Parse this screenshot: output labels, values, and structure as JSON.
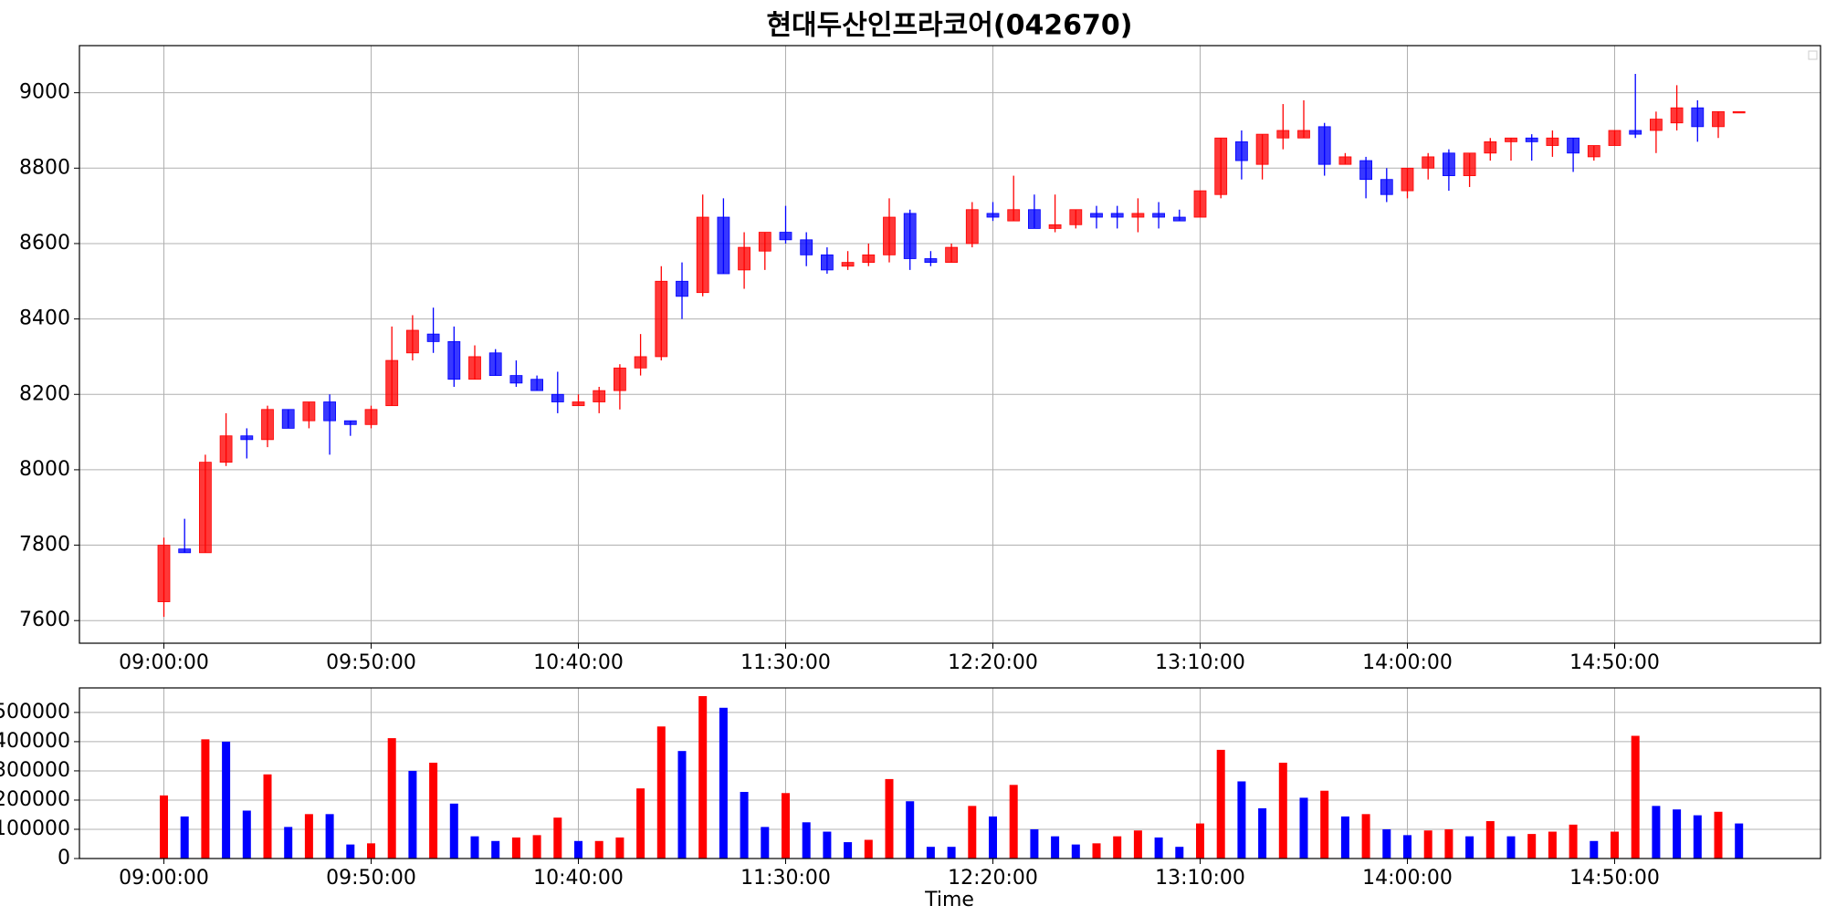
{
  "chart_data": [
    {
      "type": "candlestick",
      "title": "현대두산인프라코어(042670)",
      "categories": [
        "09:00:00",
        "09:05:00",
        "09:10:00",
        "09:15:00",
        "09:20:00",
        "09:25:00",
        "09:30:00",
        "09:35:00",
        "09:40:00",
        "09:45:00",
        "09:50:00",
        "09:55:00",
        "10:00:00",
        "10:05:00",
        "10:10:00",
        "10:15:00",
        "10:20:00",
        "10:25:00",
        "10:30:00",
        "10:35:00",
        "10:40:00",
        "10:45:00",
        "10:50:00",
        "10:55:00",
        "11:00:00",
        "11:05:00",
        "11:10:00",
        "11:15:00",
        "11:20:00",
        "11:25:00",
        "11:30:00",
        "11:35:00",
        "11:40:00",
        "11:45:00",
        "11:50:00",
        "11:55:00",
        "12:00:00",
        "12:05:00",
        "12:10:00",
        "12:15:00",
        "12:20:00",
        "12:25:00",
        "12:30:00",
        "12:35:00",
        "12:40:00",
        "12:45:00",
        "12:50:00",
        "12:55:00",
        "13:00:00",
        "13:05:00",
        "13:10:00",
        "13:15:00",
        "13:20:00",
        "13:25:00",
        "13:30:00",
        "13:35:00",
        "13:40:00",
        "13:45:00",
        "13:50:00",
        "13:55:00",
        "14:00:00",
        "14:05:00",
        "14:10:00",
        "14:15:00",
        "14:20:00",
        "14:25:00",
        "14:30:00",
        "14:35:00",
        "14:40:00",
        "14:45:00",
        "14:50:00",
        "14:55:00",
        "15:00:00",
        "15:05:00",
        "15:10:00",
        "15:15:00",
        "15:20:00"
      ],
      "open": [
        7650,
        7790,
        7780,
        8020,
        8090,
        8080,
        8160,
        8130,
        8180,
        8130,
        8120,
        8170,
        8310,
        8360,
        8340,
        8240,
        8310,
        8250,
        8240,
        8200,
        8170,
        8180,
        8210,
        8270,
        8300,
        8500,
        8470,
        8670,
        8530,
        8580,
        8630,
        8610,
        8570,
        8540,
        8550,
        8570,
        8680,
        8560,
        8550,
        8600,
        8680,
        8660,
        8690,
        8640,
        8650,
        8680,
        8680,
        8670,
        8680,
        8670,
        8670,
        8730,
        8870,
        8810,
        8880,
        8880,
        8910,
        8810,
        8820,
        8770,
        8740,
        8800,
        8840,
        8780,
        8840,
        8870,
        8880,
        8860,
        8880,
        8830,
        8860,
        8900,
        8900,
        8920,
        8960,
        8910,
        8950
      ],
      "high": [
        7820,
        7870,
        8040,
        8150,
        8110,
        8170,
        8160,
        8180,
        8200,
        8130,
        8170,
        8380,
        8410,
        8430,
        8380,
        8330,
        8320,
        8290,
        8250,
        8260,
        8200,
        8220,
        8280,
        8360,
        8540,
        8550,
        8730,
        8720,
        8630,
        8630,
        8700,
        8630,
        8590,
        8580,
        8600,
        8720,
        8690,
        8580,
        8600,
        8710,
        8710,
        8780,
        8730,
        8730,
        8690,
        8700,
        8700,
        8720,
        8710,
        8690,
        8740,
        8880,
        8900,
        8890,
        8970,
        8980,
        8920,
        8840,
        8830,
        8800,
        8800,
        8840,
        8850,
        8840,
        8880,
        8880,
        8890,
        8900,
        8880,
        8860,
        8900,
        9050,
        8950,
        9020,
        8980,
        8950,
        8950
      ],
      "low": [
        7610,
        7780,
        7780,
        8010,
        8030,
        8060,
        8110,
        8110,
        8040,
        8090,
        8110,
        8170,
        8290,
        8310,
        8220,
        8240,
        8250,
        8220,
        8210,
        8150,
        8170,
        8150,
        8160,
        8250,
        8290,
        8400,
        8460,
        8520,
        8480,
        8530,
        8600,
        8540,
        8520,
        8530,
        8540,
        8550,
        8530,
        8540,
        8550,
        8590,
        8660,
        8660,
        8640,
        8630,
        8640,
        8640,
        8640,
        8630,
        8640,
        8660,
        8670,
        8720,
        8770,
        8770,
        8850,
        8880,
        8780,
        8810,
        8720,
        8710,
        8720,
        8770,
        8740,
        8750,
        8820,
        8820,
        8820,
        8830,
        8790,
        8820,
        8860,
        8880,
        8840,
        8900,
        8870,
        8880,
        8950
      ],
      "close": [
        7800,
        7780,
        8020,
        8090,
        8080,
        8160,
        8110,
        8180,
        8130,
        8120,
        8160,
        8290,
        8370,
        8340,
        8240,
        8300,
        8250,
        8230,
        8210,
        8180,
        8180,
        8210,
        8270,
        8300,
        8500,
        8460,
        8670,
        8520,
        8590,
        8630,
        8610,
        8570,
        8530,
        8550,
        8570,
        8670,
        8560,
        8550,
        8590,
        8690,
        8670,
        8690,
        8640,
        8650,
        8690,
        8670,
        8670,
        8680,
        8670,
        8660,
        8740,
        8880,
        8820,
        8890,
        8900,
        8900,
        8810,
        8830,
        8770,
        8730,
        8800,
        8830,
        8780,
        8840,
        8870,
        8880,
        8870,
        8880,
        8840,
        8860,
        8900,
        8890,
        8930,
        8960,
        8910,
        8950,
        8950
      ],
      "up_color": "#ff0000",
      "down_color": "#0000ff",
      "ylim": [
        7540,
        9125
      ],
      "yticks": [
        7600,
        7800,
        8000,
        8200,
        8400,
        8600,
        8800,
        9000
      ],
      "xticks": [
        "09:00:00",
        "09:50:00",
        "10:40:00",
        "11:30:00",
        "12:20:00",
        "13:10:00",
        "14:00:00",
        "14:50:00"
      ],
      "grid": true
    },
    {
      "type": "bar",
      "xlabel": "Time",
      "values": [
        216000,
        144000,
        408000,
        400000,
        164000,
        288000,
        108000,
        152000,
        152000,
        48000,
        52000,
        412000,
        300000,
        328000,
        188000,
        76000,
        60000,
        72000,
        80000,
        140000,
        60000,
        60000,
        72000,
        240000,
        452000,
        368000,
        556000,
        516000,
        228000,
        108000,
        224000,
        124000,
        92000,
        56000,
        64000,
        272000,
        196000,
        40000,
        40000,
        180000,
        144000,
        252000,
        100000,
        76000,
        48000,
        52000,
        76000,
        96000,
        72000,
        40000,
        120000,
        372000,
        264000,
        172000,
        328000,
        208000,
        232000,
        144000,
        152000,
        100000,
        80000,
        96000,
        100000,
        76000,
        128000,
        76000,
        84000,
        92000,
        116000,
        60000,
        92000,
        420000,
        180000,
        168000,
        148000,
        160000,
        120000
      ],
      "colors": [
        "red",
        "blue",
        "red",
        "blue",
        "blue",
        "red",
        "blue",
        "red",
        "blue",
        "blue",
        "red",
        "red",
        "blue",
        "red",
        "blue",
        "blue",
        "blue",
        "red",
        "red",
        "red",
        "blue",
        "red",
        "red",
        "red",
        "red",
        "blue",
        "red",
        "blue",
        "blue",
        "blue",
        "red",
        "blue",
        "blue",
        "blue",
        "red",
        "red",
        "blue",
        "blue",
        "blue",
        "red",
        "blue",
        "red",
        "blue",
        "blue",
        "blue",
        "red",
        "red",
        "red",
        "blue",
        "blue",
        "red",
        "red",
        "blue",
        "blue",
        "red",
        "blue",
        "red",
        "blue",
        "red",
        "blue",
        "blue",
        "red",
        "red",
        "blue",
        "red",
        "blue",
        "red",
        "red",
        "red",
        "blue",
        "red",
        "red",
        "blue",
        "blue",
        "blue",
        "red",
        "blue"
      ],
      "ylim": [
        0,
        584000
      ],
      "yticks": [
        0,
        100000,
        200000,
        300000,
        400000,
        500000
      ],
      "xticks": [
        "09:00:00",
        "09:50:00",
        "10:40:00",
        "11:30:00",
        "12:20:00",
        "13:10:00",
        "14:00:00",
        "14:50:00"
      ],
      "grid": true
    }
  ]
}
